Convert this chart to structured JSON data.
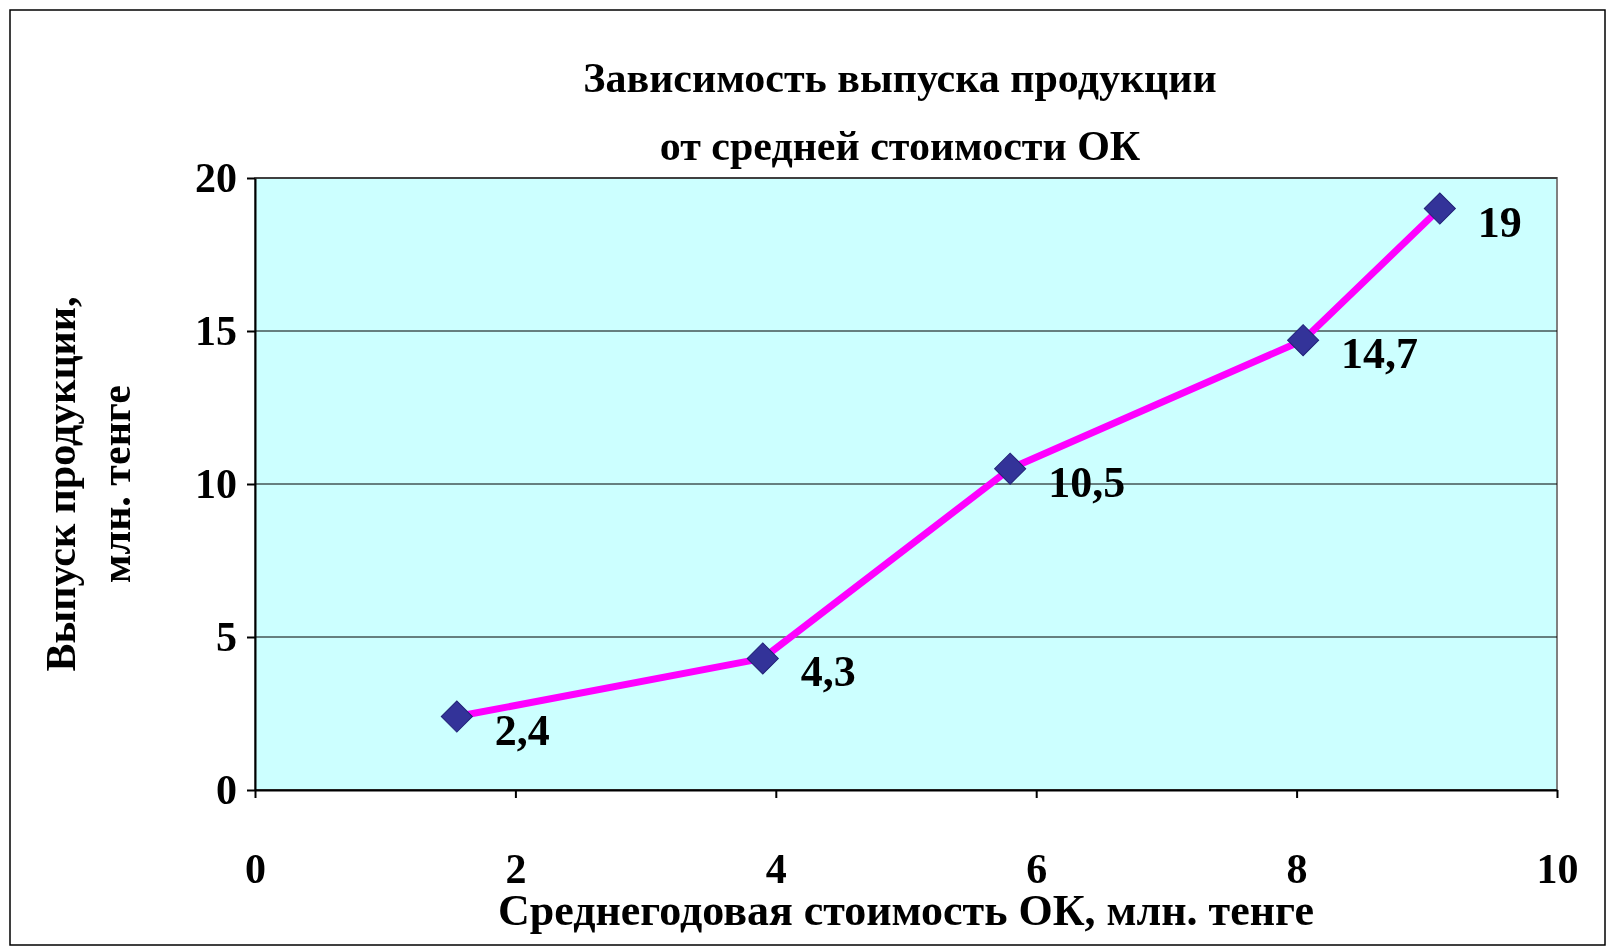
{
  "chart_data": {
    "type": "line",
    "title": "Зависимость выпуска продукции\nот средней стоимости ОК",
    "xlabel": "Среднегодовая стоимость ОК, млн. тенге",
    "ylabel": "Выпуск продукции,\nмлн. тенге",
    "x": [
      1.55,
      3.9,
      5.8,
      8.05,
      9.1
    ],
    "series": [
      {
        "color": "#ff00ff",
        "values": [
          2.4,
          4.3,
          10.5,
          14.7,
          19
        ],
        "value_labels": [
          "2,4",
          "4,3",
          "10,5",
          "14,7",
          "19"
        ]
      }
    ],
    "xlim": [
      0,
      10
    ],
    "xticks": [
      0,
      2,
      4,
      6,
      8,
      10
    ],
    "ylim": [
      0,
      20
    ],
    "yticks": [
      0,
      5,
      10,
      15,
      20
    ],
    "grid": "y",
    "marker": "diamond",
    "line_style": "solid"
  }
}
